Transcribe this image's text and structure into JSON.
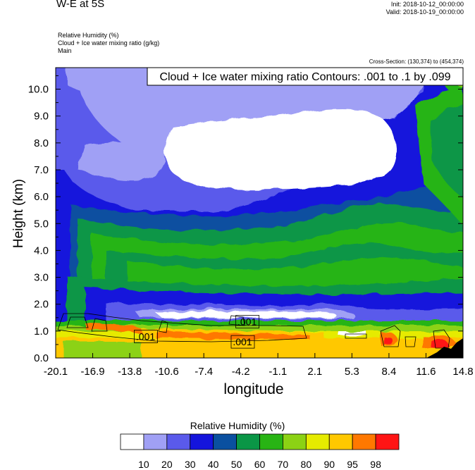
{
  "header": {
    "title": "W-E at 5S",
    "init": "Init: 2018-10-12_00:00:00",
    "valid": "Valid: 2018-10-19_00:00:00"
  },
  "fields": {
    "line1": "Relative Humidity   (%)",
    "line2": "Cloud + Ice water mixing ratio   (g/kg)",
    "line3": "Main"
  },
  "cross_section": "Cross-Section: (130,374) to (454,374)",
  "chart_data": {
    "type": "heatmap",
    "title": "",
    "contour_label": "Cloud + Ice water mixing ratio Contours: .001 to .1 by .099",
    "xlabel": "longitude",
    "ylabel": "Height (km)",
    "xlim": [
      -20.1,
      14.8
    ],
    "ylim": [
      0.0,
      10.8
    ],
    "x_ticks": [
      "-20.1",
      "-16.9",
      "-13.8",
      "-10.6",
      "-7.4",
      "-4.2",
      "-1.1",
      "2.1",
      "5.3",
      "8.4",
      "11.6",
      "14.8"
    ],
    "y_ticks": [
      "0.0",
      "1.0",
      "2.0",
      "3.0",
      "4.0",
      "5.0",
      "6.0",
      "7.0",
      "8.0",
      "9.0",
      "10.0"
    ],
    "contour_labels": [
      {
        "text": ".001",
        "x": -12.4,
        "y": 0.8
      },
      {
        "text": ".001",
        "x": -3.7,
        "y": 1.35
      },
      {
        "text": ".001",
        "x": -4.1,
        "y": 0.6
      }
    ],
    "colorbar": {
      "title": "Relative Humidity  (%)",
      "levels": [
        "10",
        "20",
        "30",
        "40",
        "50",
        "60",
        "70",
        "80",
        "90",
        "95",
        "98"
      ],
      "colors": [
        "#ffffff",
        "#a0a0f5",
        "#5a5aeb",
        "#1414dc",
        "#0a50a0",
        "#0a9646",
        "#28b414",
        "#8cd214",
        "#e6eb00",
        "#ffc800",
        "#ff7800",
        "#ff1414"
      ]
    }
  }
}
